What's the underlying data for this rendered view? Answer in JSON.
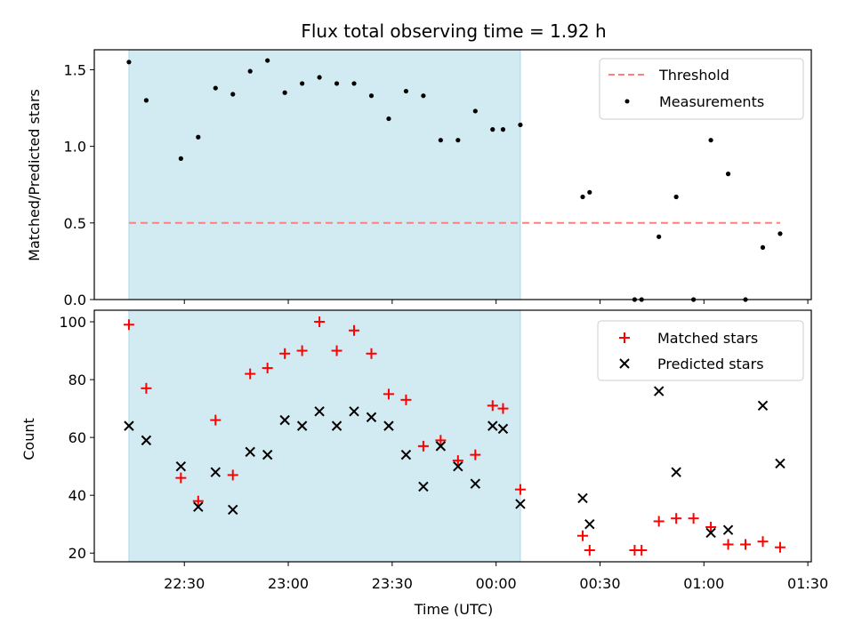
{
  "chart_data": [
    {
      "type": "scatter",
      "title": "Flux total observing time = 1.92 h",
      "xlabel": "",
      "ylabel": "Matched/Predicted stars",
      "ylim": [
        0,
        1.63
      ],
      "yticks": [
        0.0,
        0.5,
        1.0,
        1.5
      ],
      "ytick_labels": [
        "0.0",
        "0.5",
        "1.0",
        "1.5"
      ],
      "shaded_range": [
        "22:14",
        "00:07"
      ],
      "shade_color": "#add8e6",
      "legend": {
        "position": "top-right",
        "entries": [
          "Threshold",
          "Measurements"
        ]
      },
      "series": [
        {
          "name": "Threshold",
          "type": "line",
          "style": "dashed",
          "color": "#ff7f7f",
          "x": [
            "22:14",
            "01:22"
          ],
          "y": [
            0.5,
            0.5
          ]
        },
        {
          "name": "Measurements",
          "type": "scatter",
          "color": "#000000",
          "x": [
            "22:14",
            "22:19",
            "22:29",
            "22:34",
            "22:39",
            "22:44",
            "22:49",
            "22:54",
            "22:59",
            "23:04",
            "23:09",
            "23:14",
            "23:19",
            "23:24",
            "23:29",
            "23:34",
            "23:39",
            "23:44",
            "23:49",
            "23:54",
            "23:59",
            "00:02",
            "00:07",
            "00:25",
            "00:27",
            "00:40",
            "00:42",
            "00:47",
            "00:52",
            "00:57",
            "01:02",
            "01:07",
            "01:12",
            "01:17",
            "01:22"
          ],
          "y": [
            1.55,
            1.3,
            0.92,
            1.06,
            1.38,
            1.34,
            1.49,
            1.56,
            1.35,
            1.41,
            1.45,
            1.41,
            1.41,
            1.33,
            1.18,
            1.36,
            1.33,
            1.04,
            1.04,
            1.23,
            1.11,
            1.11,
            1.14,
            0.67,
            0.7,
            0.0,
            0.0,
            0.41,
            0.67,
            0.0,
            1.04,
            0.82,
            0.0,
            0.34,
            0.43
          ]
        }
      ]
    },
    {
      "type": "scatter",
      "title": "",
      "xlabel": "Time (UTC)",
      "ylabel": "Count",
      "ylim": [
        17,
        104
      ],
      "yticks": [
        20,
        40,
        60,
        80,
        100
      ],
      "ytick_labels": [
        "20",
        "40",
        "60",
        "80",
        "100"
      ],
      "xlim": [
        "22:04",
        "01:31"
      ],
      "xticks": [
        "22:30",
        "23:00",
        "23:30",
        "00:00",
        "00:30",
        "01:00",
        "01:30"
      ],
      "xtick_labels": [
        "22:30",
        "23:00",
        "23:30",
        "00:00",
        "00:30",
        "01:00",
        "01:30"
      ],
      "shaded_range": [
        "22:14",
        "00:07"
      ],
      "shade_color": "#add8e6",
      "legend": {
        "position": "top-right",
        "entries": [
          "Matched stars",
          "Predicted stars"
        ]
      },
      "series": [
        {
          "name": "Matched stars",
          "marker": "+",
          "color": "#ff0000",
          "x": [
            "22:14",
            "22:19",
            "22:29",
            "22:34",
            "22:39",
            "22:44",
            "22:49",
            "22:54",
            "22:59",
            "23:04",
            "23:09",
            "23:14",
            "23:19",
            "23:24",
            "23:29",
            "23:34",
            "23:39",
            "23:44",
            "23:49",
            "23:54",
            "23:59",
            "00:02",
            "00:07",
            "00:25",
            "00:27",
            "00:40",
            "00:42",
            "00:47",
            "00:52",
            "00:57",
            "01:02",
            "01:07",
            "01:12",
            "01:17",
            "01:22"
          ],
          "y": [
            99,
            77,
            46,
            38,
            66,
            47,
            82,
            84,
            89,
            90,
            100,
            90,
            97,
            89,
            75,
            73,
            57,
            59,
            52,
            54,
            71,
            70,
            42,
            26,
            21,
            21,
            21,
            31,
            32,
            32,
            29,
            23,
            23,
            24,
            22
          ]
        },
        {
          "name": "Predicted stars",
          "marker": "x",
          "color": "#000000",
          "x": [
            "22:14",
            "22:19",
            "22:29",
            "22:34",
            "22:39",
            "22:44",
            "22:49",
            "22:54",
            "22:59",
            "23:04",
            "23:09",
            "23:14",
            "23:19",
            "23:24",
            "23:29",
            "23:34",
            "23:39",
            "23:44",
            "23:49",
            "23:54",
            "23:59",
            "00:02",
            "00:07",
            "00:25",
            "00:27",
            "00:47",
            "00:52",
            "01:02",
            "01:07",
            "01:17",
            "01:22"
          ],
          "y": [
            64,
            59,
            50,
            36,
            48,
            35,
            55,
            54,
            66,
            64,
            69,
            64,
            69,
            67,
            64,
            54,
            43,
            57,
            50,
            44,
            64,
            63,
            37,
            39,
            30,
            76,
            48,
            27,
            28,
            71,
            51
          ]
        }
      ]
    }
  ]
}
